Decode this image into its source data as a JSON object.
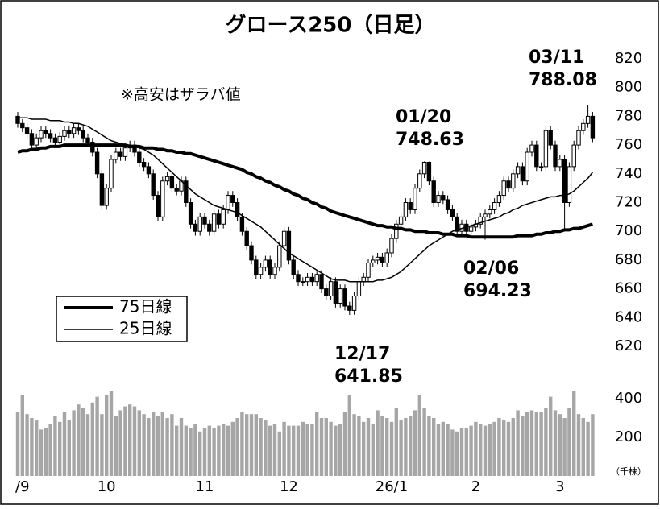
{
  "chart_data": {
    "type": "candlestick",
    "title": "グロース250（日足）",
    "note": "※高安はザラバ値",
    "categories": [
      null,
      "/9",
      null,
      null,
      null,
      null,
      null,
      null,
      null,
      null,
      null,
      null,
      null,
      null,
      null,
      null,
      null,
      null,
      null,
      "10",
      null,
      null,
      null,
      null,
      null,
      null,
      null,
      null,
      null,
      null,
      null,
      null,
      null,
      null,
      null,
      null,
      null,
      null,
      null,
      null,
      "11",
      null,
      null,
      null,
      null,
      null,
      null,
      null,
      null,
      null,
      null,
      null,
      null,
      null,
      null,
      null,
      null,
      null,
      "12",
      null,
      null,
      null,
      null,
      null,
      null,
      null,
      null,
      null,
      null,
      null,
      null,
      null,
      null,
      null,
      null,
      null,
      null,
      null,
      null,
      null,
      "26/1",
      null,
      null,
      null,
      null,
      null,
      null,
      null,
      null,
      null,
      null,
      null,
      null,
      null,
      null,
      null,
      null,
      null,
      "2",
      null,
      null,
      null,
      null,
      null,
      null,
      null,
      null,
      null,
      null,
      null,
      null,
      null,
      null,
      null,
      null,
      null,
      "3",
      null,
      null,
      null,
      null,
      null,
      null,
      null
    ],
    "open": [
      780,
      775,
      772,
      768,
      760,
      765,
      770,
      768,
      765,
      762,
      766,
      770,
      768,
      772,
      770,
      765,
      762,
      755,
      740,
      718,
      730,
      750,
      755,
      752,
      758,
      760,
      755,
      748,
      745,
      740,
      725,
      710,
      735,
      738,
      730,
      728,
      735,
      720,
      705,
      700,
      710,
      705,
      700,
      712,
      705,
      715,
      725,
      720,
      710,
      700,
      690,
      680,
      670,
      675,
      680,
      670,
      675,
      690,
      700,
      680,
      670,
      665,
      665,
      668,
      665,
      670,
      660,
      655,
      665,
      650,
      660,
      648,
      645,
      655,
      665,
      668,
      678,
      680,
      682,
      678,
      685,
      695,
      705,
      710,
      720,
      715,
      730,
      740,
      748,
      735,
      720,
      725,
      722,
      715,
      710,
      700,
      705,
      700,
      703,
      705,
      710,
      712,
      715,
      720,
      725,
      735,
      730,
      740,
      745,
      735,
      755,
      760,
      745,
      745,
      770,
      760,
      745,
      750,
      720,
      745,
      760,
      770,
      775,
      780
    ],
    "high": [
      783,
      778,
      775,
      771,
      768,
      773,
      773,
      771,
      768,
      769,
      773,
      773,
      775,
      775,
      773,
      768,
      765,
      758,
      743,
      733,
      753,
      758,
      758,
      761,
      763,
      763,
      758,
      751,
      748,
      743,
      728,
      738,
      741,
      741,
      733,
      738,
      738,
      723,
      708,
      713,
      713,
      708,
      715,
      715,
      718,
      728,
      728,
      723,
      713,
      703,
      693,
      683,
      678,
      683,
      683,
      678,
      693,
      703,
      703,
      683,
      673,
      668,
      671,
      671,
      673,
      673,
      663,
      668,
      668,
      663,
      663,
      651,
      658,
      668,
      671,
      681,
      683,
      685,
      685,
      688,
      698,
      708,
      713,
      723,
      723,
      733,
      743,
      748.63,
      748.5,
      738,
      728,
      728,
      725,
      718,
      713,
      708,
      708,
      706,
      708,
      713,
      715,
      718,
      723,
      728,
      738,
      738,
      743,
      748,
      748,
      758,
      763,
      763,
      748,
      773,
      773,
      763,
      753,
      753,
      748,
      763,
      773,
      778,
      788.08,
      783
    ],
    "low": [
      772,
      769,
      765,
      757,
      757,
      762,
      765,
      762,
      759,
      759,
      763,
      765,
      765,
      767,
      762,
      759,
      752,
      737,
      715,
      715,
      727,
      747,
      749,
      749,
      755,
      752,
      745,
      742,
      737,
      722,
      707,
      707,
      732,
      727,
      725,
      725,
      717,
      702,
      697,
      697,
      702,
      697,
      697,
      702,
      702,
      712,
      717,
      707,
      697,
      687,
      677,
      667,
      667,
      672,
      667,
      667,
      672,
      687,
      677,
      667,
      662,
      662,
      662,
      662,
      662,
      657,
      652,
      652,
      647,
      647,
      645,
      641.85,
      642,
      652,
      662,
      665,
      675,
      677,
      675,
      675,
      682,
      692,
      702,
      707,
      712,
      712,
      727,
      737,
      732,
      717,
      717,
      719,
      712,
      707,
      697,
      697,
      697,
      697,
      700,
      702,
      694.23,
      709,
      712,
      717,
      722,
      727,
      727,
      737,
      732,
      732,
      752,
      742,
      742,
      742,
      757,
      742,
      742,
      700,
      717,
      742,
      757,
      767,
      772,
      762
    ],
    "close": [
      775,
      772,
      768,
      760,
      765,
      770,
      768,
      765,
      762,
      766,
      770,
      768,
      772,
      770,
      765,
      762,
      755,
      740,
      718,
      730,
      750,
      755,
      752,
      758,
      760,
      755,
      748,
      745,
      740,
      725,
      710,
      735,
      738,
      730,
      728,
      735,
      720,
      705,
      700,
      710,
      705,
      700,
      712,
      705,
      715,
      725,
      720,
      710,
      700,
      690,
      680,
      670,
      675,
      680,
      670,
      675,
      690,
      700,
      680,
      670,
      665,
      665,
      668,
      665,
      670,
      660,
      655,
      665,
      650,
      660,
      648,
      645,
      655,
      665,
      668,
      678,
      680,
      682,
      678,
      685,
      695,
      705,
      710,
      720,
      715,
      730,
      740,
      748,
      735,
      720,
      725,
      722,
      715,
      710,
      700,
      705,
      700,
      703,
      705,
      710,
      712,
      715,
      720,
      725,
      735,
      730,
      740,
      745,
      735,
      755,
      760,
      745,
      745,
      770,
      760,
      745,
      750,
      720,
      745,
      760,
      770,
      775,
      780,
      765
    ],
    "ylim": [
      620,
      820
    ],
    "yticks": [
      620,
      640,
      660,
      680,
      700,
      720,
      740,
      760,
      780,
      800,
      820
    ],
    "series": [
      {
        "name": "75日線",
        "color": "#000000",
        "values": [
          755,
          756,
          756,
          757,
          757,
          758,
          758,
          759,
          759,
          759,
          760,
          760,
          760,
          760,
          760,
          760,
          760,
          760,
          760,
          760,
          760,
          760,
          760,
          760,
          759,
          759,
          759,
          758,
          758,
          758,
          757,
          757,
          756,
          756,
          755,
          755,
          754,
          754,
          753,
          752,
          751,
          750,
          749,
          748,
          747,
          746,
          745,
          744,
          743,
          741,
          740,
          738,
          737,
          735,
          734,
          732,
          731,
          729,
          728,
          726,
          725,
          723,
          722,
          720,
          719,
          717,
          716,
          714,
          713,
          712,
          711,
          710,
          709,
          708,
          707,
          706,
          705,
          704,
          704,
          703,
          703,
          702,
          702,
          701,
          701,
          700,
          700,
          700,
          699,
          699,
          699,
          698,
          698,
          698,
          697,
          697,
          697,
          696,
          696,
          696,
          696,
          696,
          696,
          696,
          696,
          696,
          696,
          697,
          697,
          697,
          697,
          698,
          698,
          699,
          699,
          700,
          700,
          701,
          701,
          702,
          702,
          703,
          704,
          705
        ]
      },
      {
        "name": "25日線",
        "color": "#000000",
        "values": [
          779,
          779,
          779,
          778,
          778,
          778,
          778,
          777,
          777,
          777,
          776,
          776,
          775,
          775,
          774,
          773,
          771,
          769,
          767,
          765,
          763,
          762,
          761,
          760,
          760,
          759,
          758,
          757,
          755,
          753,
          750,
          747,
          744,
          741,
          738,
          735,
          732,
          729,
          726,
          724,
          722,
          720,
          718,
          717,
          716,
          715,
          714,
          713,
          711,
          709,
          707,
          705,
          703,
          700,
          697,
          694,
          691,
          688,
          685,
          683,
          681,
          679,
          677,
          675,
          673,
          671,
          669,
          667,
          666,
          666,
          666,
          665,
          665,
          665,
          665,
          665,
          665,
          666,
          666,
          667,
          668,
          670,
          672,
          675,
          678,
          681,
          684,
          687,
          690,
          692,
          694,
          696,
          698,
          700,
          701,
          702,
          703,
          704,
          705,
          706,
          707,
          708,
          709,
          710,
          712,
          713,
          715,
          716,
          718,
          719,
          720,
          721,
          722,
          723,
          724,
          724,
          725,
          725,
          726,
          728,
          731,
          734,
          737,
          741
        ]
      }
    ],
    "volume": {
      "unit": "（千株）",
      "color": "#a6a6a6",
      "ylim": [
        0,
        400
      ],
      "yticks": [
        200,
        400
      ],
      "values": [
        330,
        420,
        320,
        300,
        290,
        240,
        250,
        270,
        310,
        280,
        330,
        290,
        340,
        370,
        350,
        320,
        380,
        410,
        320,
        420,
        440,
        310,
        340,
        360,
        370,
        360,
        340,
        320,
        300,
        330,
        310,
        330,
        300,
        320,
        260,
        300,
        260,
        250,
        270,
        230,
        250,
        260,
        250,
        260,
        270,
        260,
        280,
        300,
        330,
        320,
        320,
        320,
        300,
        290,
        260,
        270,
        230,
        280,
        260,
        260,
        260,
        280,
        270,
        270,
        330,
        300,
        300,
        280,
        260,
        270,
        330,
        420,
        320,
        310,
        280,
        300,
        270,
        340,
        310,
        300,
        280,
        350,
        290,
        300,
        310,
        340,
        420,
        350,
        310,
        300,
        270,
        280,
        270,
        240,
        230,
        250,
        250,
        260,
        280,
        270,
        260,
        270,
        280,
        300,
        290,
        280,
        300,
        340,
        310,
        330,
        340,
        330,
        330,
        350,
        410,
        340,
        320,
        300,
        350,
        440,
        320,
        300,
        280,
        320
      ]
    },
    "annotations": [
      "03/11",
      "01/20",
      "02/06",
      "12/17"
    ]
  }
}
